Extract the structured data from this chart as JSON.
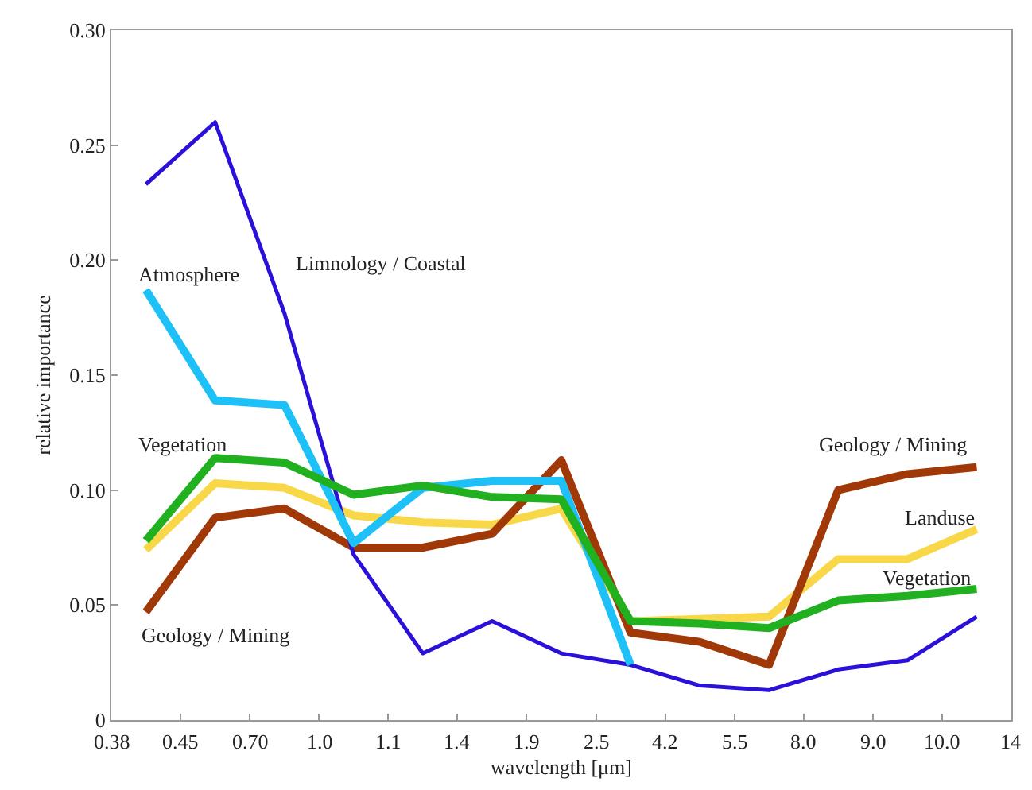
{
  "chart_data": {
    "type": "line",
    "xlabel": "wavelength [μm]",
    "ylabel": "relative importance",
    "categories": [
      null,
      null,
      null,
      null,
      null,
      null,
      null,
      null,
      null,
      null,
      null,
      null,
      null
    ],
    "ylim": [
      0,
      0.3
    ],
    "yticks": [
      {
        "value": 0,
        "label": "0"
      },
      {
        "value": 0.05,
        "label": "0.05"
      },
      {
        "value": 0.1,
        "label": "0.10"
      },
      {
        "value": 0.15,
        "label": "0.15"
      },
      {
        "value": 0.2,
        "label": "0.20"
      },
      {
        "value": 0.25,
        "label": "0.25"
      },
      {
        "value": 0.3,
        "label": "0.30"
      }
    ],
    "marker": "none",
    "line_style": "solid",
    "series": [
      {
        "color": "#f8d848",
        "values": [
          0.074,
          0.103,
          0.101,
          0.089,
          0.086,
          0.085,
          0.092,
          0.043,
          0.044,
          0.045,
          0.07,
          0.07,
          0.083
        ]
      },
      {
        "color": "#a03808",
        "values": [
          0.047,
          0.088,
          0.092,
          0.075,
          0.075,
          0.081,
          0.113,
          0.038,
          0.034,
          0.024,
          0.1,
          0.107,
          0.11
        ]
      },
      {
        "color": "#2a10d8",
        "values": [
          0.233,
          0.26,
          0.177,
          0.072,
          0.029,
          0.043,
          0.029,
          0.024,
          0.015,
          0.013,
          0.022,
          0.026,
          0.045
        ]
      },
      {
        "color": "#1ec0f8",
        "values": [
          0.187,
          0.139,
          0.137,
          0.077,
          0.101,
          0.104,
          0.104,
          0.024,
          null,
          null,
          null,
          null,
          null
        ]
      },
      {
        "color": "#20b020",
        "values": [
          0.078,
          0.114,
          0.112,
          0.098,
          0.102,
          0.097,
          0.096,
          0.043,
          0.042,
          0.04,
          0.052,
          0.054,
          0.057
        ]
      }
    ],
    "annotations": [
      "Atmosphere",
      "Limnology / Coastal",
      "Vegetation",
      "Geology / Mining",
      "Geology / Mining",
      "Landuse",
      "Vegetation",
      "0.38",
      "0.45",
      "0.70",
      "1.0",
      "1.1",
      "1.4",
      "1.9",
      "2.5",
      "4.2",
      "5.5",
      "8.0",
      "9.0",
      "10.0",
      "14"
    ]
  }
}
